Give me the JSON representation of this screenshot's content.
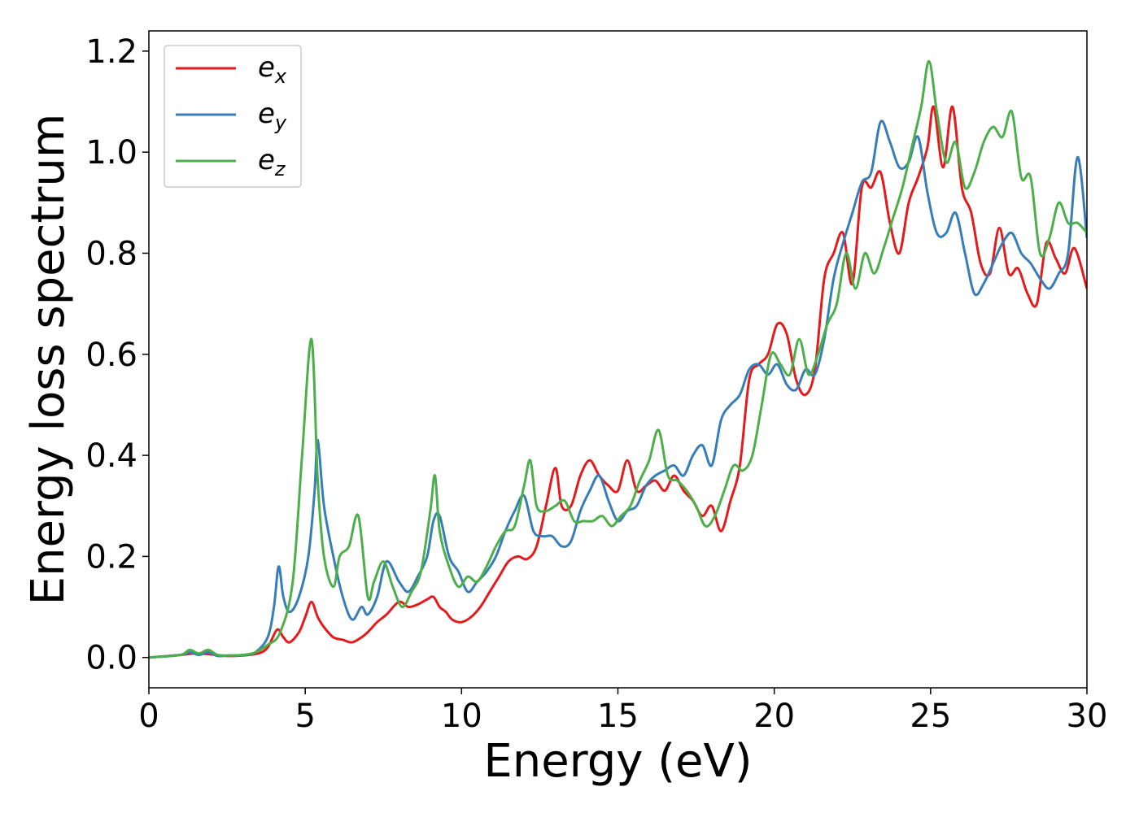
{
  "chart_data": {
    "type": "line",
    "xlabel": "Energy (eV)",
    "ylabel": "Energy loss spectrum",
    "xlim": [
      0,
      30
    ],
    "ylim": [
      -0.06,
      1.24
    ],
    "xticks": [
      0,
      5,
      10,
      15,
      20,
      25,
      30
    ],
    "xtick_labels": [
      "0",
      "5",
      "10",
      "15",
      "20",
      "25",
      "30"
    ],
    "yticks": [
      0.0,
      0.2,
      0.4,
      0.6,
      0.8,
      1.0,
      1.2
    ],
    "ytick_labels": [
      "0.0",
      "0.2",
      "0.4",
      "0.6",
      "0.8",
      "1.0",
      "1.2"
    ],
    "grid": false,
    "legend_position": "top-left",
    "series": [
      {
        "name": "e_x",
        "legend_base": "e",
        "legend_sub": "x",
        "color": "#e41a1c",
        "x": [
          0,
          1,
          1.5,
          2,
          2.5,
          3,
          3.5,
          3.8,
          4.1,
          4.3,
          4.5,
          4.8,
          5.0,
          5.2,
          5.4,
          5.6,
          5.9,
          6.2,
          6.5,
          6.8,
          7.0,
          7.3,
          7.6,
          8.0,
          8.3,
          8.6,
          8.9,
          9.1,
          9.3,
          9.5,
          9.7,
          10.0,
          10.3,
          10.6,
          10.9,
          11.2,
          11.5,
          11.8,
          12.1,
          12.4,
          12.7,
          13.0,
          13.2,
          13.5,
          13.8,
          14.1,
          14.4,
          14.7,
          15.0,
          15.3,
          15.6,
          15.9,
          16.2,
          16.5,
          16.8,
          17.1,
          17.4,
          17.7,
          18.0,
          18.3,
          18.6,
          18.9,
          19.2,
          19.5,
          19.8,
          20.1,
          20.4,
          20.7,
          21.0,
          21.3,
          21.6,
          21.9,
          22.2,
          22.5,
          22.8,
          23.1,
          23.4,
          23.7,
          24.0,
          24.3,
          24.6,
          24.9,
          25.1,
          25.4,
          25.7,
          26.0,
          26.3,
          26.6,
          26.9,
          27.2,
          27.5,
          27.8,
          28.1,
          28.4,
          28.7,
          29.0,
          29.3,
          29.6,
          30.0
        ],
        "y": [
          0,
          0.005,
          0.008,
          0.006,
          0.003,
          0.004,
          0.008,
          0.02,
          0.055,
          0.04,
          0.03,
          0.05,
          0.08,
          0.11,
          0.08,
          0.06,
          0.04,
          0.035,
          0.03,
          0.04,
          0.05,
          0.07,
          0.085,
          0.11,
          0.1,
          0.105,
          0.115,
          0.12,
          0.1,
          0.09,
          0.075,
          0.07,
          0.08,
          0.1,
          0.13,
          0.16,
          0.19,
          0.2,
          0.195,
          0.22,
          0.3,
          0.375,
          0.3,
          0.3,
          0.36,
          0.39,
          0.36,
          0.34,
          0.33,
          0.39,
          0.33,
          0.34,
          0.35,
          0.33,
          0.36,
          0.33,
          0.31,
          0.28,
          0.3,
          0.25,
          0.31,
          0.38,
          0.55,
          0.58,
          0.6,
          0.66,
          0.64,
          0.55,
          0.52,
          0.57,
          0.75,
          0.8,
          0.84,
          0.74,
          0.93,
          0.93,
          0.96,
          0.86,
          0.8,
          0.9,
          0.95,
          1.01,
          1.09,
          0.97,
          1.09,
          0.93,
          0.88,
          0.78,
          0.76,
          0.85,
          0.76,
          0.77,
          0.72,
          0.7,
          0.82,
          0.79,
          0.76,
          0.81,
          0.73
        ]
      },
      {
        "name": "e_y",
        "legend_base": "e",
        "legend_sub": "y",
        "color": "#377eb8",
        "x": [
          0,
          1,
          1.3,
          1.6,
          1.9,
          2.2,
          2.6,
          3.0,
          3.4,
          3.8,
          4.0,
          4.15,
          4.3,
          4.5,
          4.8,
          5.1,
          5.3,
          5.4,
          5.6,
          5.9,
          6.2,
          6.5,
          6.8,
          7.0,
          7.3,
          7.6,
          8.0,
          8.3,
          8.6,
          8.9,
          9.1,
          9.3,
          9.6,
          9.9,
          10.2,
          10.5,
          10.8,
          11.1,
          11.4,
          11.7,
          12.0,
          12.3,
          12.6,
          12.9,
          13.2,
          13.5,
          13.8,
          14.1,
          14.4,
          14.7,
          15.0,
          15.3,
          15.6,
          15.9,
          16.2,
          16.5,
          16.8,
          17.1,
          17.4,
          17.7,
          18.0,
          18.3,
          18.6,
          18.9,
          19.2,
          19.5,
          19.8,
          20.1,
          20.4,
          20.7,
          21.0,
          21.3,
          21.6,
          21.9,
          22.2,
          22.5,
          22.8,
          23.1,
          23.4,
          23.7,
          24.0,
          24.3,
          24.6,
          24.9,
          25.2,
          25.5,
          25.8,
          26.1,
          26.4,
          26.7,
          27.0,
          27.3,
          27.6,
          27.9,
          28.2,
          28.5,
          28.8,
          29.1,
          29.4,
          29.7,
          30.0
        ],
        "y": [
          0,
          0.005,
          0.01,
          0.005,
          0.01,
          0.003,
          0.004,
          0.005,
          0.01,
          0.04,
          0.1,
          0.18,
          0.12,
          0.09,
          0.12,
          0.2,
          0.33,
          0.43,
          0.3,
          0.2,
          0.12,
          0.075,
          0.1,
          0.085,
          0.12,
          0.19,
          0.15,
          0.13,
          0.16,
          0.2,
          0.27,
          0.28,
          0.2,
          0.17,
          0.13,
          0.15,
          0.17,
          0.2,
          0.25,
          0.29,
          0.32,
          0.25,
          0.24,
          0.24,
          0.22,
          0.23,
          0.29,
          0.33,
          0.36,
          0.31,
          0.27,
          0.29,
          0.3,
          0.34,
          0.36,
          0.37,
          0.38,
          0.36,
          0.4,
          0.42,
          0.38,
          0.47,
          0.5,
          0.52,
          0.57,
          0.58,
          0.56,
          0.58,
          0.54,
          0.53,
          0.57,
          0.56,
          0.63,
          0.75,
          0.82,
          0.88,
          0.94,
          0.96,
          1.06,
          1.02,
          0.97,
          0.98,
          1.03,
          0.92,
          0.84,
          0.84,
          0.88,
          0.8,
          0.72,
          0.74,
          0.78,
          0.82,
          0.84,
          0.8,
          0.78,
          0.75,
          0.73,
          0.76,
          0.8,
          0.99,
          0.83
        ]
      },
      {
        "name": "e_z",
        "legend_base": "e",
        "legend_sub": "z",
        "color": "#4daf4a",
        "x": [
          0,
          1,
          1.3,
          1.6,
          1.9,
          2.2,
          2.6,
          3.0,
          3.4,
          3.8,
          4.2,
          4.6,
          4.9,
          5.2,
          5.4,
          5.6,
          5.9,
          6.1,
          6.4,
          6.7,
          7.0,
          7.2,
          7.5,
          7.8,
          8.1,
          8.4,
          8.7,
          9.0,
          9.15,
          9.3,
          9.6,
          9.9,
          10.2,
          10.5,
          10.8,
          11.1,
          11.4,
          11.7,
          12.0,
          12.2,
          12.4,
          12.7,
          13.0,
          13.3,
          13.6,
          13.9,
          14.2,
          14.5,
          14.8,
          15.1,
          15.4,
          15.7,
          16.0,
          16.3,
          16.6,
          16.9,
          17.2,
          17.5,
          17.8,
          18.1,
          18.4,
          18.7,
          19.0,
          19.3,
          19.6,
          19.9,
          20.2,
          20.5,
          20.8,
          21.1,
          21.4,
          21.7,
          22.0,
          22.3,
          22.6,
          22.9,
          23.2,
          23.5,
          23.8,
          24.1,
          24.4,
          24.7,
          24.95,
          25.2,
          25.5,
          25.8,
          26.1,
          26.4,
          26.7,
          27.0,
          27.3,
          27.6,
          27.9,
          28.2,
          28.5,
          28.8,
          29.1,
          29.4,
          29.7,
          30.0
        ],
        "y": [
          0,
          0.005,
          0.015,
          0.008,
          0.015,
          0.005,
          0.004,
          0.005,
          0.01,
          0.025,
          0.05,
          0.15,
          0.4,
          0.63,
          0.35,
          0.2,
          0.14,
          0.2,
          0.22,
          0.28,
          0.12,
          0.15,
          0.19,
          0.14,
          0.1,
          0.13,
          0.17,
          0.29,
          0.36,
          0.25,
          0.18,
          0.14,
          0.16,
          0.15,
          0.18,
          0.22,
          0.25,
          0.26,
          0.34,
          0.39,
          0.3,
          0.29,
          0.3,
          0.31,
          0.27,
          0.27,
          0.27,
          0.28,
          0.26,
          0.28,
          0.3,
          0.35,
          0.39,
          0.45,
          0.36,
          0.35,
          0.33,
          0.3,
          0.26,
          0.28,
          0.33,
          0.38,
          0.37,
          0.4,
          0.5,
          0.6,
          0.58,
          0.56,
          0.63,
          0.56,
          0.6,
          0.66,
          0.7,
          0.8,
          0.73,
          0.8,
          0.76,
          0.81,
          0.87,
          0.93,
          1.01,
          1.09,
          1.18,
          1.08,
          0.98,
          1.02,
          0.93,
          0.96,
          1.02,
          1.05,
          1.03,
          1.08,
          0.95,
          0.95,
          0.8,
          0.83,
          0.9,
          0.86,
          0.86,
          0.84
        ]
      }
    ]
  }
}
